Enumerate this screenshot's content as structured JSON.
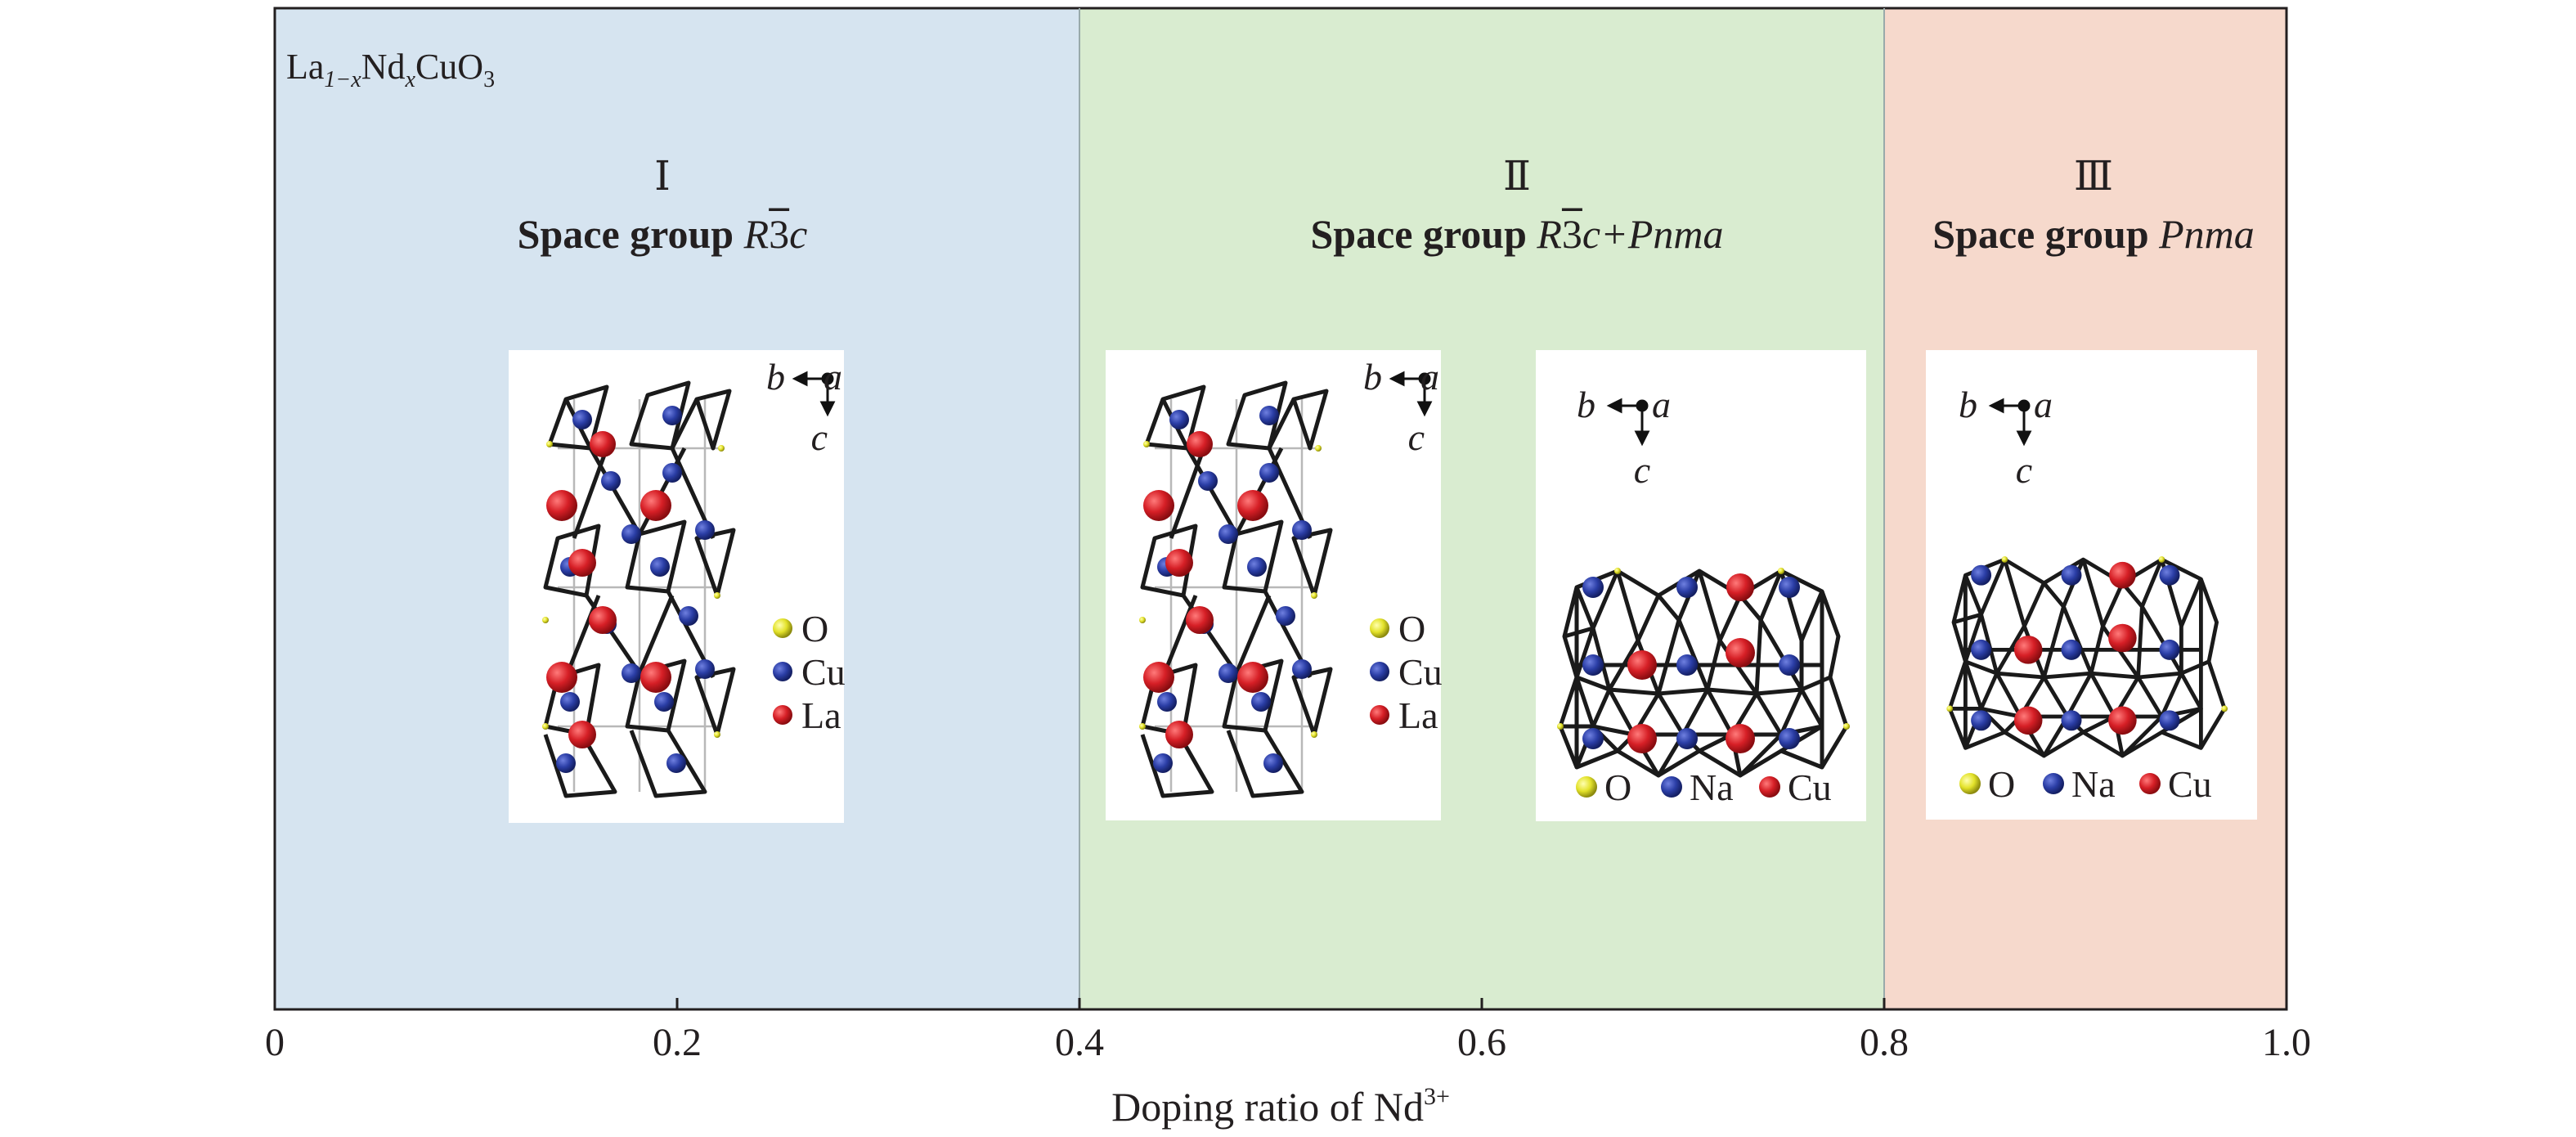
{
  "formula": {
    "main": "La",
    "sub1": "1−x",
    "mid": "Nd",
    "sub2": "x",
    "tail": "CuO",
    "sub3": "3"
  },
  "x_axis": {
    "title": "Doping ratio of Nd",
    "title_sup": "3+",
    "range": [
      0,
      1.0
    ],
    "ticks": [
      {
        "value": 0,
        "label": "0"
      },
      {
        "value": 0.2,
        "label": "0.2"
      },
      {
        "value": 0.4,
        "label": "0.4"
      },
      {
        "value": 0.6,
        "label": "0.6"
      },
      {
        "value": 0.8,
        "label": "0.8"
      },
      {
        "value": 1.0,
        "label": "1.0"
      }
    ]
  },
  "regions": [
    {
      "numeral": "Ⅰ",
      "range": [
        0,
        0.4
      ],
      "color": "#d6e4f0",
      "label_prefix": "Space group ",
      "sg_R": "R",
      "sg_3": "3",
      "sg_c": "c",
      "sg_extra": ""
    },
    {
      "numeral": "Ⅱ",
      "range": [
        0.4,
        0.8
      ],
      "color": "#d9ecd0",
      "label_prefix": "Space group ",
      "sg_R": "R",
      "sg_3": "3",
      "sg_c": "c",
      "sg_extra": "+Pnma"
    },
    {
      "numeral": "Ⅲ",
      "range": [
        0.8,
        1.0
      ],
      "color": "#f6d9cc",
      "label_prefix": "Space group ",
      "sg_pnma": "Pnma"
    }
  ],
  "axes_labels": {
    "a": "a",
    "b": "b",
    "c": "c"
  },
  "legend_rhombo": [
    "O",
    "Cu",
    "La"
  ],
  "legend_ortho": [
    "O",
    "Na",
    "Cu"
  ],
  "colors": {
    "O": "#e3e22a",
    "Cu": "#2b3ea6",
    "La": "#d61f26",
    "Na": "#2b3ea6",
    "Cu_ortho": "#d61f26"
  }
}
